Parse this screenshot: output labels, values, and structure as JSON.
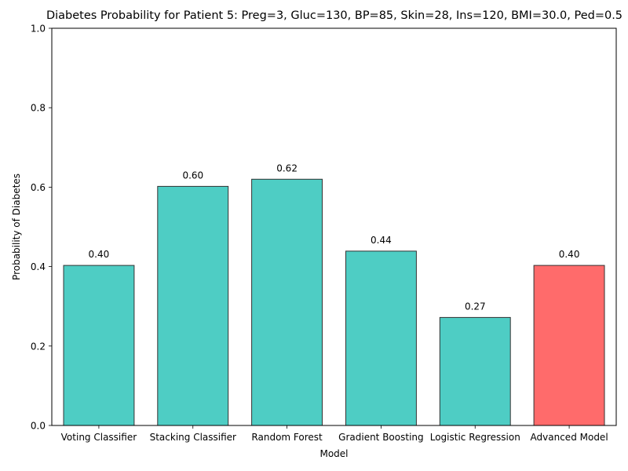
{
  "chart_data": {
    "type": "bar",
    "title": "Diabetes Probability for Patient 5: Preg=3, Gluc=130, BP=85, Skin=28, Ins=120, BMI=30.0, Ped=0.5",
    "xlabel": "Model",
    "ylabel": "Probability of Diabetes",
    "categories": [
      "Voting Classifier",
      "Stacking Classifier",
      "Random Forest",
      "Gradient Boosting",
      "Logistic Regression",
      "Advanced Model"
    ],
    "values": [
      0.403,
      0.602,
      0.62,
      0.439,
      0.272,
      0.403
    ],
    "value_labels": [
      "0.40",
      "0.60",
      "0.62",
      "0.44",
      "0.27",
      "0.40"
    ],
    "colors": [
      "#4ecdc4",
      "#4ecdc4",
      "#4ecdc4",
      "#4ecdc4",
      "#4ecdc4",
      "#ff6b6b"
    ],
    "ylim": [
      0,
      1.0
    ],
    "yticks": [
      0.0,
      0.2,
      0.4,
      0.6,
      0.8,
      1.0
    ],
    "ytick_labels": [
      "0.0",
      "0.2",
      "0.4",
      "0.6",
      "0.8",
      "1.0"
    ],
    "grid": false,
    "legend": "none"
  }
}
